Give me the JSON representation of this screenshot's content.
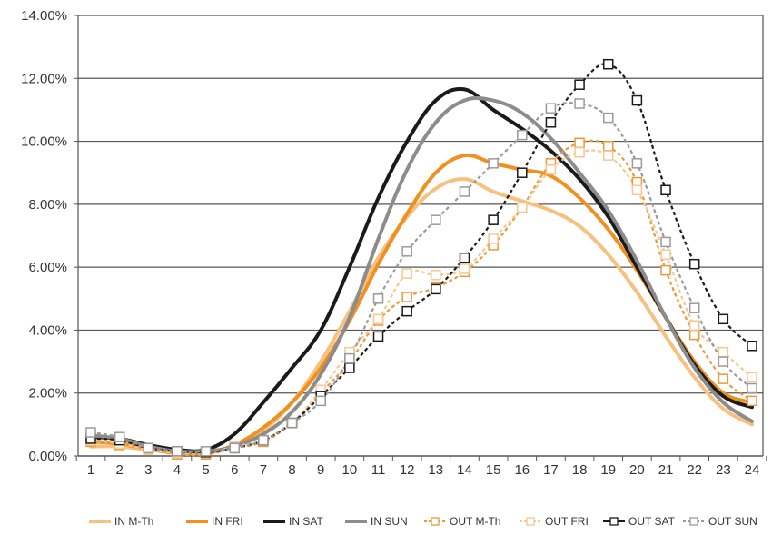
{
  "chart_data": {
    "type": "line",
    "title": "",
    "xlabel": "",
    "ylabel": "",
    "x": [
      1,
      2,
      3,
      4,
      5,
      6,
      7,
      8,
      9,
      10,
      11,
      12,
      13,
      14,
      15,
      16,
      17,
      18,
      19,
      20,
      21,
      22,
      23,
      24
    ],
    "x_tick_labels": [
      "1",
      "2",
      "3",
      "4",
      "5",
      "6",
      "7",
      "8",
      "9",
      "10",
      "11",
      "12",
      "13",
      "14",
      "15",
      "16",
      "17",
      "18",
      "19",
      "20",
      "21",
      "22",
      "23",
      "24"
    ],
    "ylim": [
      0,
      14
    ],
    "y_ticks": [
      0,
      2,
      4,
      6,
      8,
      10,
      12,
      14
    ],
    "y_tick_labels": [
      "0.00%",
      "2.00%",
      "4.00%",
      "6.00%",
      "8.00%",
      "10.00%",
      "12.00%",
      "14.00%"
    ],
    "grid": "horizontal",
    "legend_position": "bottom",
    "series": [
      {
        "name": "IN M-Th",
        "color": "#f7c07f",
        "style": "solid",
        "marker": "none",
        "values": [
          0.3,
          0.3,
          0.2,
          0.1,
          0.1,
          0.3,
          0.8,
          1.7,
          3.0,
          4.6,
          6.3,
          7.6,
          8.5,
          8.8,
          8.4,
          8.1,
          7.8,
          7.3,
          6.4,
          5.2,
          3.8,
          2.5,
          1.5,
          1.0
        ]
      },
      {
        "name": "IN FRI",
        "color": "#f0901e",
        "style": "solid",
        "marker": "none",
        "values": [
          0.45,
          0.4,
          0.25,
          0.1,
          0.1,
          0.35,
          0.9,
          1.7,
          2.8,
          4.3,
          6.1,
          7.7,
          9.0,
          9.55,
          9.3,
          9.1,
          8.9,
          8.2,
          7.2,
          5.9,
          4.4,
          3.0,
          2.0,
          1.7
        ]
      },
      {
        "name": "IN SAT",
        "color": "#1a1a1a",
        "style": "solid",
        "marker": "none",
        "values": [
          0.6,
          0.55,
          0.35,
          0.2,
          0.2,
          0.7,
          1.7,
          2.8,
          4.0,
          6.0,
          8.2,
          10.0,
          11.3,
          11.65,
          11.0,
          10.4,
          9.7,
          8.8,
          7.6,
          6.0,
          4.4,
          2.9,
          1.9,
          1.55
        ]
      },
      {
        "name": "IN SUN",
        "color": "#8c8c8c",
        "style": "solid",
        "marker": "none",
        "values": [
          0.65,
          0.55,
          0.3,
          0.15,
          0.15,
          0.3,
          0.7,
          1.4,
          2.6,
          4.4,
          6.9,
          9.1,
          10.6,
          11.3,
          11.3,
          10.9,
          10.1,
          9.0,
          7.8,
          6.2,
          4.4,
          2.8,
          1.7,
          1.1
        ]
      },
      {
        "name": "OUT M-Th",
        "color": "#e99a3a",
        "style": "dashed",
        "marker": "square",
        "values": [
          0.45,
          0.35,
          0.2,
          0.05,
          0.05,
          0.25,
          0.45,
          1.05,
          2.0,
          3.0,
          4.3,
          5.05,
          5.35,
          5.85,
          6.7,
          7.9,
          9.3,
          9.95,
          9.85,
          8.7,
          5.9,
          3.85,
          2.45,
          1.75
        ]
      },
      {
        "name": "OUT FRI",
        "color": "#f5c792",
        "style": "dashed",
        "marker": "square",
        "values": [
          0.5,
          0.4,
          0.2,
          0.1,
          0.1,
          0.3,
          0.5,
          1.05,
          2.1,
          3.3,
          4.35,
          5.8,
          5.75,
          5.95,
          6.9,
          7.9,
          9.1,
          9.65,
          9.55,
          8.45,
          6.4,
          4.15,
          3.3,
          2.5
        ]
      },
      {
        "name": "OUT SAT",
        "color": "#1a1a1a",
        "style": "dashed",
        "marker": "square",
        "values": [
          0.55,
          0.5,
          0.25,
          0.15,
          0.12,
          0.25,
          0.5,
          1.05,
          1.9,
          2.8,
          3.8,
          4.6,
          5.3,
          6.3,
          7.5,
          9.0,
          10.6,
          11.8,
          12.45,
          11.3,
          8.45,
          6.1,
          4.35,
          3.5
        ]
      },
      {
        "name": "OUT SUN",
        "color": "#9a9a9a",
        "style": "dashed",
        "marker": "square",
        "values": [
          0.75,
          0.6,
          0.25,
          0.15,
          0.15,
          0.25,
          0.5,
          1.05,
          1.75,
          3.1,
          5.0,
          6.5,
          7.5,
          8.4,
          9.3,
          10.2,
          11.05,
          11.2,
          10.75,
          9.3,
          6.8,
          4.7,
          3.0,
          2.15
        ]
      }
    ]
  }
}
